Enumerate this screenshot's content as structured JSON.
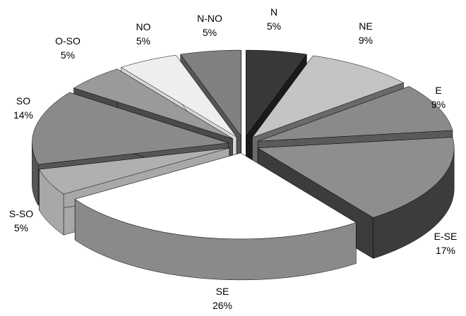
{
  "chart_data": {
    "type": "pie",
    "style": "3d-exploded",
    "title": "",
    "slices": [
      {
        "label": "N",
        "pct_label": "5%",
        "value": 5,
        "color_top": "#383838",
        "color_side": "#1a1a1a"
      },
      {
        "label": "NE",
        "pct_label": "9%",
        "value": 9,
        "color_top": "#c4c4c4",
        "color_side": "#6a6a6a"
      },
      {
        "label": "E",
        "pct_label": "9%",
        "value": 9,
        "color_top": "#8a8a8a",
        "color_side": "#5a5a5a"
      },
      {
        "label": "E-SE",
        "pct_label": "17%",
        "value": 17,
        "color_top": "#8e8e8e",
        "color_side": "#3c3c3c"
      },
      {
        "label": "SE",
        "pct_label": "26%",
        "value": 26,
        "color_top": "#ffffff",
        "color_side": "#8a8a8a"
      },
      {
        "label": "S-SO",
        "pct_label": "5%",
        "value": 5,
        "color_top": "#b0b0b0",
        "color_side": "#a8a8a8"
      },
      {
        "label": "SO",
        "pct_label": "14%",
        "value": 14,
        "color_top": "#8a8a8a",
        "color_side": "#555555"
      },
      {
        "label": "O-SO",
        "pct_label": "5%",
        "value": 5,
        "color_top": "#9a9a9a",
        "color_side": "#4a4a4a"
      },
      {
        "label": "NO",
        "pct_label": "5%",
        "value": 5,
        "color_top": "#eeeeee",
        "color_side": "#d6d6d6"
      },
      {
        "label": "N-NO",
        "pct_label": "5%",
        "value": 5,
        "color_top": "#808080",
        "color_side": "#555555"
      }
    ]
  }
}
